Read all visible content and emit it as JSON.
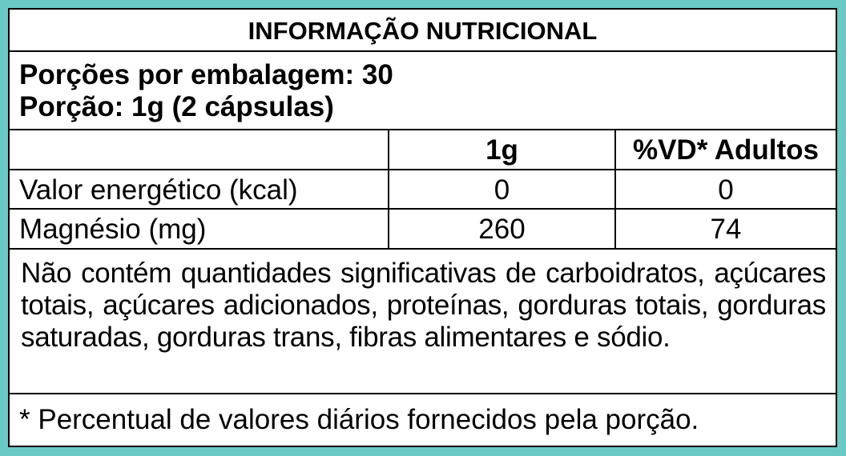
{
  "title": "INFORMAÇÃO NUTRICIONAL",
  "servings_per_package": "Porções por embalagem: 30",
  "serving_size": "Porção: 1g (2 cápsulas)",
  "table": {
    "headers": [
      "",
      "1g",
      "%VD* Adultos"
    ],
    "rows": [
      [
        "Valor energético (kcal)",
        "0",
        "0"
      ],
      [
        "Magnésio (mg)",
        "260",
        "74"
      ]
    ]
  },
  "note": "Não contém quantidades significativas de carboidratos, açúcares totais, açúcares adicionados, proteínas, gorduras totais, gorduras saturadas, gorduras trans, fibras alimentares e sódio.",
  "footnote": "* Percentual de valores diários fornecidos pela porção.",
  "colors": {
    "background": "#6ac9c5",
    "border": "#000000"
  }
}
